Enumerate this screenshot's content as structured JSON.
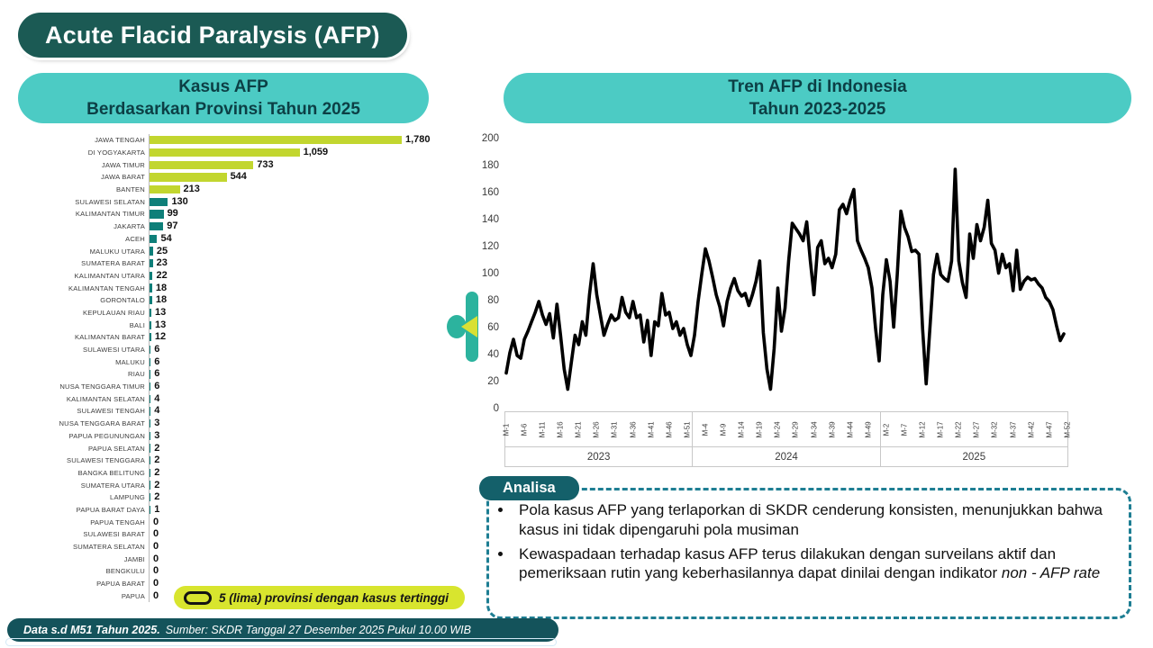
{
  "page": {
    "title": "Acute Flacid Paralysis (AFP)",
    "footer": {
      "bold": "Data s.d M51 Tahun 2025.",
      "rest": "Sumber: SKDR Tanggal 27 Desember 2025 Pukul 10.00 WIB"
    }
  },
  "colors": {
    "dark_teal": "#1B5A54",
    "header_turquoise": "#4CCBC4",
    "header_text": "#0C3F45",
    "bar_green": "#C2D62F",
    "bar_teal": "#0E7F79",
    "legend_yellow": "#D8E52E",
    "footer_teal": "#14535B",
    "analisa_teal": "#14606A",
    "dashed_border": "#1E7E93",
    "line_black": "#000000",
    "ornament_teal": "#2CB39E",
    "ornament_yellow": "#D9E034"
  },
  "bar_panel": {
    "title_lines": [
      "Kasus AFP",
      "Berdasarkan Provinsi Tahun 2025"
    ],
    "legend_label": "5 (lima) provinsi dengan kasus tertinggi"
  },
  "trend_panel": {
    "title_lines": [
      "Tren AFP di Indonesia",
      "Tahun 2023-2025"
    ]
  },
  "analisa": {
    "header": "Analisa",
    "bullets": [
      {
        "text": "Pola kasus AFP yang terlaporkan di SKDR cenderung konsisten, menunjukkan bahwa kasus ini tidak dipengaruhi pola musiman",
        "italic": ""
      },
      {
        "text": "Kewaspadaan terhadap kasus AFP terus dilakukan dengan surveilans aktif dan pemeriksaan rutin yang keberhasilannya dapat dinilai dengan indikator ",
        "italic": "non - AFP rate"
      }
    ]
  },
  "chart_data": [
    {
      "type": "bar",
      "orientation": "horizontal",
      "title": "Kasus AFP Berdasarkan Provinsi Tahun 2025",
      "highlight_top_n": 5,
      "highlight_color": "#C2D62F",
      "bar_color": "#0E7F79",
      "legend": "5 (lima) provinsi dengan kasus tertinggi",
      "categories": [
        "JAWA TENGAH",
        "DI YOGYAKARTA",
        "JAWA TIMUR",
        "JAWA BARAT",
        "BANTEN",
        "SULAWESI SELATAN",
        "KALIMANTAN TIMUR",
        "JAKARTA",
        "ACEH",
        "MALUKU UTARA",
        "SUMATERA BARAT",
        "KALIMANTAN UTARA",
        "KALIMANTAN TENGAH",
        "GORONTALO",
        "KEPULAUAN RIAU",
        "BALI",
        "KALIMANTAN BARAT",
        "SULAWESI UTARA",
        "MALUKU",
        "RIAU",
        "NUSA TENGGARA TIMUR",
        "KALIMANTAN SELATAN",
        "SULAWESI TENGAH",
        "NUSA TENGGARA BARAT",
        "PAPUA PEGUNUNGAN",
        "PAPUA SELATAN",
        "SULAWESI TENGGARA",
        "BANGKA BELITUNG",
        "SUMATERA UTARA",
        "LAMPUNG",
        "PAPUA BARAT DAYA",
        "PAPUA TENGAH",
        "SULAWESI BARAT",
        "SUMATERA SELATAN",
        "JAMBI",
        "BENGKULU",
        "PAPUA BARAT",
        "PAPUA"
      ],
      "values": [
        1780,
        1059,
        733,
        544,
        213,
        130,
        99,
        97,
        54,
        25,
        23,
        22,
        18,
        18,
        13,
        13,
        12,
        6,
        6,
        6,
        6,
        4,
        4,
        3,
        3,
        2,
        2,
        2,
        2,
        2,
        1,
        0,
        0,
        0,
        0,
        0,
        0,
        0
      ],
      "value_labels": [
        "1,780",
        "1,059",
        "733",
        "544",
        "213",
        "130",
        "99",
        "97",
        "54",
        "25",
        "23",
        "22",
        "18",
        "18",
        "13",
        "13",
        "12",
        "6",
        "6",
        "6",
        "6",
        "4",
        "4",
        "3",
        "3",
        "2",
        "2",
        "2",
        "2",
        "2",
        "1",
        "0",
        "0",
        "0",
        "0",
        "0",
        "0",
        "0"
      ]
    },
    {
      "type": "line",
      "title": "Tren AFP di Indonesia Tahun 2023-2025",
      "ylabel": "",
      "ylim": [
        0,
        200
      ],
      "ytick_step": 20,
      "grid": false,
      "line_color": "#000000",
      "years": [
        {
          "label": "2023",
          "tick_labels": [
            "M-1",
            "M-6",
            "M-11",
            "M-16",
            "M-21",
            "M-26",
            "M-31",
            "M-36",
            "M-41",
            "M-46",
            "M-51"
          ],
          "values": [
            27,
            42,
            52,
            40,
            38,
            52,
            58,
            65,
            72,
            80,
            70,
            63,
            71,
            53,
            78,
            55,
            30,
            15,
            35,
            55,
            48,
            65,
            55,
            85,
            108,
            85,
            70,
            55,
            63,
            70,
            66,
            68,
            83,
            72,
            68,
            80,
            68,
            70,
            50,
            66,
            40,
            65,
            62,
            86,
            70,
            72,
            60,
            65,
            55,
            60,
            48,
            40
          ]
        },
        {
          "label": "2024",
          "tick_labels": [
            "M-4",
            "M-9",
            "M-14",
            "M-19",
            "M-24",
            "M-29",
            "M-34",
            "M-39",
            "M-44",
            "M-49"
          ],
          "values": [
            55,
            80,
            100,
            119,
            110,
            98,
            85,
            76,
            62,
            80,
            90,
            97,
            88,
            84,
            86,
            77,
            85,
            95,
            110,
            57,
            30,
            15,
            45,
            90,
            58,
            75,
            110,
            138,
            134,
            130,
            125,
            139,
            110,
            85,
            120,
            125,
            108,
            112,
            105,
            115,
            148,
            152,
            145,
            155,
            163,
            125,
            118,
            112,
            105,
            90,
            60,
            36
          ]
        },
        {
          "label": "2025",
          "tick_labels": [
            "M-2",
            "M-7",
            "M-12",
            "M-17",
            "M-22",
            "M-27",
            "M-32",
            "M-37",
            "M-42",
            "M-47",
            "M-52"
          ],
          "values": [
            85,
            111,
            95,
            61,
            100,
            147,
            135,
            128,
            117,
            118,
            115,
            60,
            19,
            60,
            100,
            115,
            100,
            97,
            95,
            110,
            178,
            110,
            94,
            83,
            130,
            112,
            137,
            125,
            135,
            155,
            123,
            118,
            101,
            115,
            105,
            108,
            88,
            118,
            89,
            95,
            98,
            96,
            97,
            93,
            90,
            83,
            80,
            74,
            62,
            51,
            56
          ]
        }
      ]
    }
  ]
}
